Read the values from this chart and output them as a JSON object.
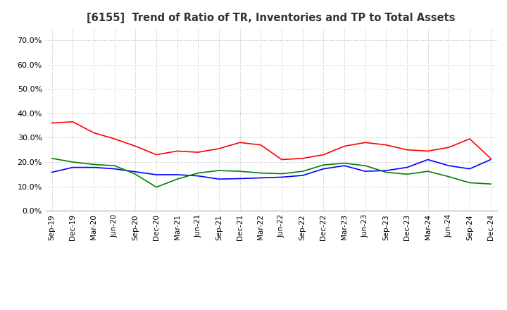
{
  "title": "[6155]  Trend of Ratio of TR, Inventories and TP to Total Assets",
  "x_labels": [
    "Sep-19",
    "Dec-19",
    "Mar-20",
    "Jun-20",
    "Sep-20",
    "Dec-20",
    "Mar-21",
    "Jun-21",
    "Sep-21",
    "Dec-21",
    "Mar-22",
    "Jun-22",
    "Sep-22",
    "Dec-22",
    "Mar-23",
    "Jun-23",
    "Sep-23",
    "Dec-23",
    "Mar-24",
    "Jun-24",
    "Sep-24",
    "Dec-24"
  ],
  "trade_receivables": [
    0.36,
    0.365,
    0.32,
    0.295,
    0.265,
    0.23,
    0.245,
    0.24,
    0.255,
    0.28,
    0.27,
    0.21,
    0.215,
    0.23,
    0.265,
    0.28,
    0.27,
    0.25,
    0.245,
    0.26,
    0.295,
    0.215
  ],
  "inventories": [
    0.158,
    0.178,
    0.178,
    0.172,
    0.16,
    0.148,
    0.148,
    0.143,
    0.13,
    0.132,
    0.135,
    0.138,
    0.145,
    0.172,
    0.185,
    0.162,
    0.165,
    0.178,
    0.21,
    0.185,
    0.172,
    0.21
  ],
  "trade_payables": [
    0.215,
    0.2,
    0.19,
    0.185,
    0.15,
    0.097,
    0.13,
    0.155,
    0.165,
    0.162,
    0.155,
    0.152,
    0.162,
    0.188,
    0.195,
    0.185,
    0.158,
    0.15,
    0.162,
    0.14,
    0.115,
    0.11
  ],
  "tr_color": "#ff0000",
  "inv_color": "#0000ff",
  "tp_color": "#008000",
  "ylim": [
    0.0,
    0.75
  ],
  "yticks": [
    0.0,
    0.1,
    0.2,
    0.3,
    0.4,
    0.5,
    0.6,
    0.7
  ],
  "bg_color": "#ffffff",
  "grid_color": "#bbbbbb"
}
